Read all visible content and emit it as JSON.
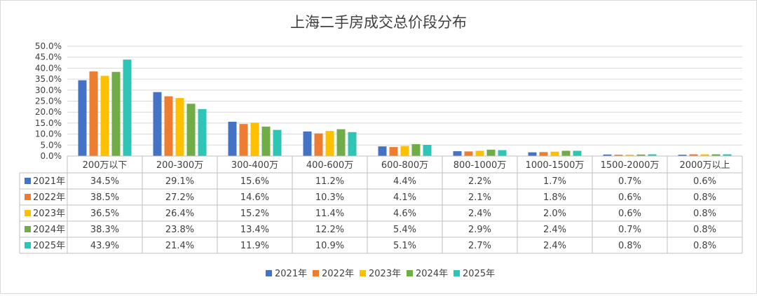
{
  "chart_data": {
    "type": "bar",
    "title": "上海二手房成交总价段分布",
    "categories": [
      "200万以下",
      "200-300万",
      "300-400万",
      "400-600万",
      "600-800万",
      "800-1000万",
      "1000-1500万",
      "1500-2000万",
      "2000万以上"
    ],
    "yticks": [
      "50.0%",
      "45.0%",
      "40.0%",
      "35.0%",
      "30.0%",
      "25.0%",
      "20.0%",
      "15.0%",
      "10.0%",
      "5.0%",
      "0.0%"
    ],
    "ylim": [
      0,
      50
    ],
    "grid": true,
    "legend_position": "bottom",
    "series": [
      {
        "name": "2021年",
        "color": "#4472c4",
        "values": [
          34.5,
          29.1,
          15.6,
          11.2,
          4.4,
          2.2,
          1.7,
          0.7,
          0.6
        ],
        "labels": [
          "34.5%",
          "29.1%",
          "15.6%",
          "11.2%",
          "4.4%",
          "2.2%",
          "1.7%",
          "0.7%",
          "0.6%"
        ]
      },
      {
        "name": "2022年",
        "color": "#ed7d31",
        "values": [
          38.5,
          27.2,
          14.6,
          10.3,
          4.1,
          2.1,
          1.8,
          0.6,
          0.8
        ],
        "labels": [
          "38.5%",
          "27.2%",
          "14.6%",
          "10.3%",
          "4.1%",
          "2.1%",
          "1.8%",
          "0.6%",
          "0.8%"
        ]
      },
      {
        "name": "2023年",
        "color": "#ffc000",
        "values": [
          36.5,
          26.4,
          15.2,
          11.4,
          4.6,
          2.4,
          2.0,
          0.6,
          0.8
        ],
        "labels": [
          "36.5%",
          "26.4%",
          "15.2%",
          "11.4%",
          "4.6%",
          "2.4%",
          "2.0%",
          "0.6%",
          "0.8%"
        ]
      },
      {
        "name": "2024年",
        "color": "#70ad47",
        "values": [
          38.3,
          23.8,
          13.4,
          12.2,
          5.4,
          2.9,
          2.4,
          0.7,
          0.8
        ],
        "labels": [
          "38.3%",
          "23.8%",
          "13.4%",
          "12.2%",
          "5.4%",
          "2.9%",
          "2.4%",
          "0.7%",
          "0.8%"
        ]
      },
      {
        "name": "2025年",
        "color": "#2ec4b6",
        "values": [
          43.9,
          21.4,
          11.9,
          10.9,
          5.1,
          2.7,
          2.4,
          0.8,
          0.8
        ],
        "labels": [
          "43.9%",
          "21.4%",
          "11.9%",
          "10.9%",
          "5.1%",
          "2.7%",
          "2.4%",
          "0.8%",
          "0.8%"
        ]
      }
    ]
  }
}
